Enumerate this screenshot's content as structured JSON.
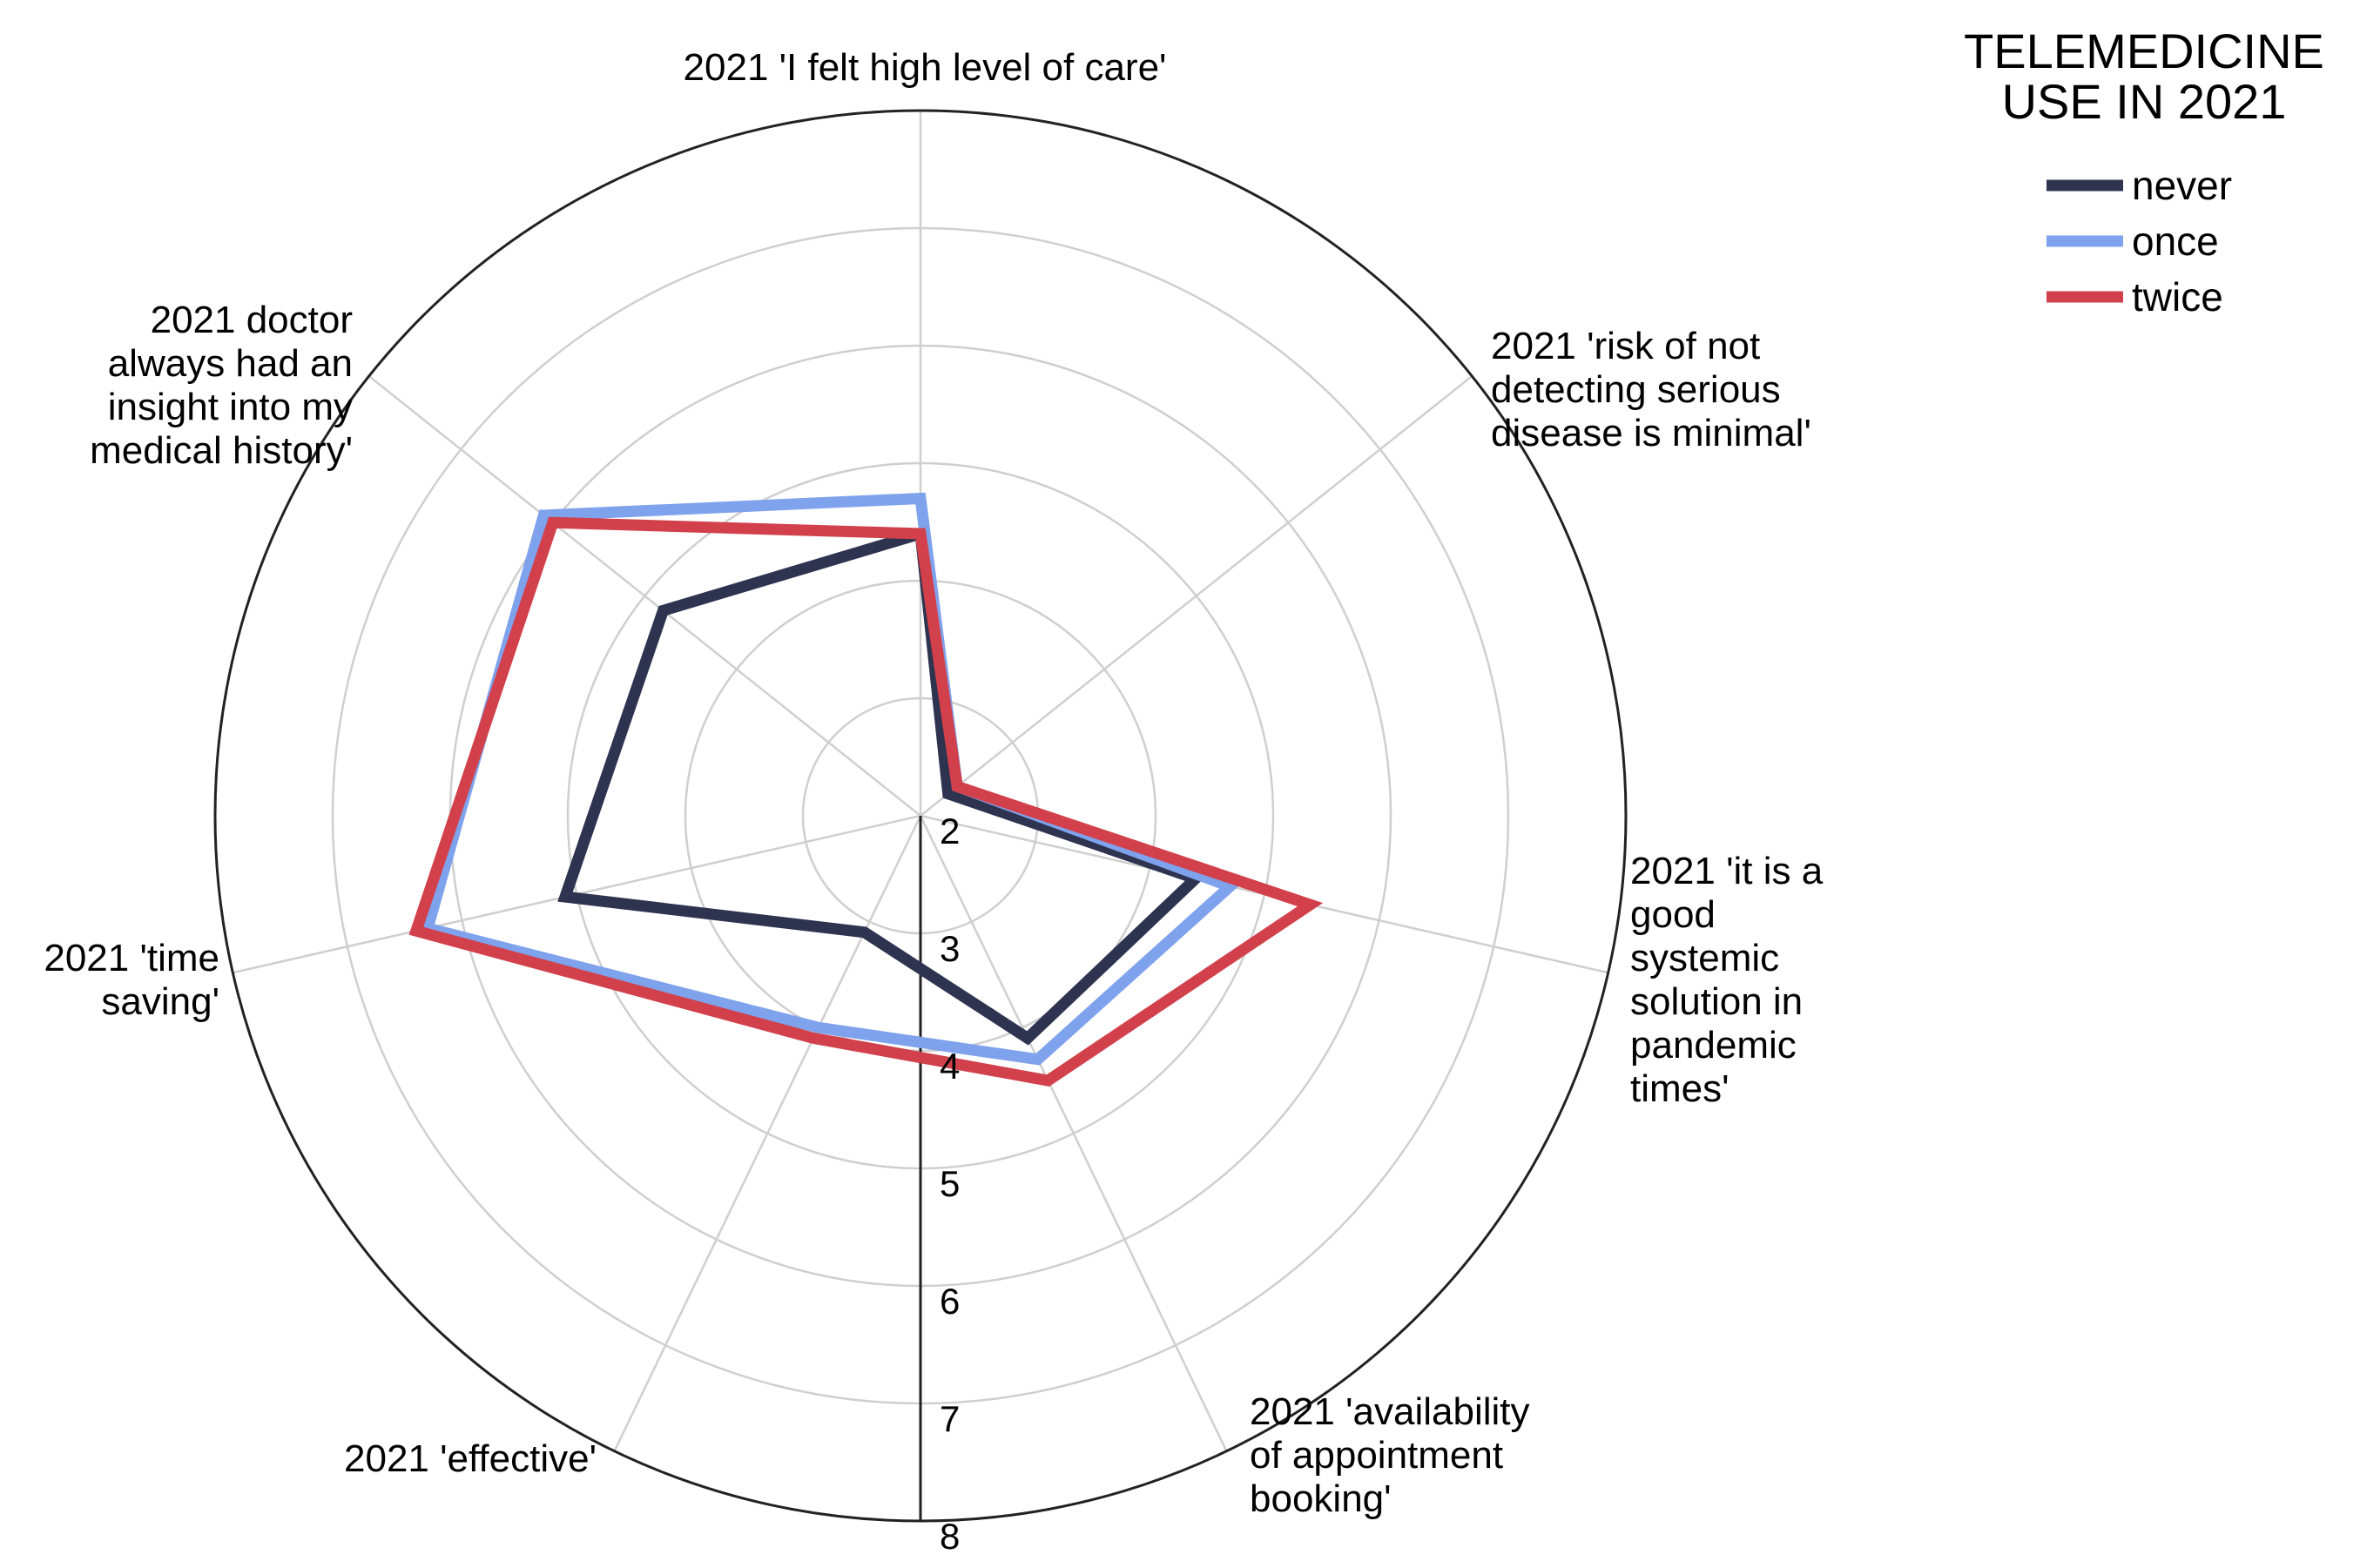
{
  "chart_data": {
    "type": "radar",
    "legend": {
      "title_lines": [
        "TELEMEDICINE",
        "USE IN 2021"
      ],
      "position": "top-right"
    },
    "axes": [
      {
        "key": "care",
        "label_lines": [
          "2021 'I felt high level of care'"
        ]
      },
      {
        "key": "risk",
        "label_lines": [
          "2021 'risk of not",
          "detecting serious",
          "disease is minimal'"
        ]
      },
      {
        "key": "systemic",
        "label_lines": [
          "2021 'it is a",
          "good",
          "systemic",
          "solution in",
          "pandemic",
          "times'"
        ]
      },
      {
        "key": "availability",
        "label_lines": [
          "2021  'availability",
          "of appointment",
          "booking'"
        ]
      },
      {
        "key": "effective",
        "label_lines": [
          "2021 'effective'"
        ]
      },
      {
        "key": "time",
        "label_lines": [
          "2021 'time",
          "saving'"
        ]
      },
      {
        "key": "insight",
        "label_lines": [
          "2021 doctor",
          "always had an",
          "insight into my",
          "medical history'"
        ]
      }
    ],
    "scale": {
      "min": 2,
      "max": 8,
      "ticks": [
        2,
        3,
        4,
        5,
        6,
        7,
        8
      ]
    },
    "series": [
      {
        "name": "never",
        "color": "#2e3350",
        "values": [
          4.4,
          2.3,
          4.4,
          4.1,
          3.1,
          5.1,
          4.8
        ]
      },
      {
        "name": "once",
        "color": "#7fa2ec",
        "values": [
          4.7,
          2.4,
          4.7,
          4.3,
          4.0,
          6.3,
          6.1
        ]
      },
      {
        "name": "twice",
        "color": "#d1404b",
        "values": [
          4.4,
          2.4,
          5.4,
          4.5,
          4.1,
          6.4,
          6.0
        ]
      }
    ]
  }
}
